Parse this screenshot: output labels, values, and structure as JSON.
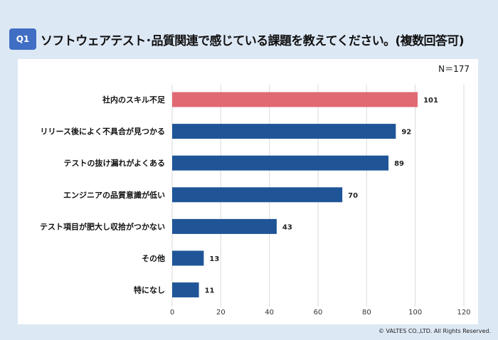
{
  "header": {
    "badge": "Q1",
    "title": "ソフトウェアテスト･品質関連で感じている課題を教えてください。(複数回答可)"
  },
  "sample_size": "N＝177",
  "copyright": "© VALTES CO.,LTD. All Rights Reserved.",
  "colors": {
    "highlight": "#e16a72",
    "bar": "#1f5597",
    "grid": "#d9d9d9"
  },
  "chart_data": {
    "type": "bar",
    "orientation": "horizontal",
    "title": "ソフトウェアテスト･品質関連で感じている課題を教えてください。(複数回答可)",
    "categories": [
      "社内のスキル不足",
      "リリース後によく不具合が見つかる",
      "テストの抜け漏れがよくある",
      "エンジニアの品質意識が低い",
      "テスト項目が肥大し収拾がつかない",
      "その他",
      "特になし"
    ],
    "values": [
      101,
      92,
      89,
      70,
      43,
      13,
      11
    ],
    "xlim": [
      0,
      120
    ],
    "xticks": [
      0,
      20,
      40,
      60,
      80,
      100,
      120
    ],
    "highlight_index": 0,
    "grid": true
  }
}
